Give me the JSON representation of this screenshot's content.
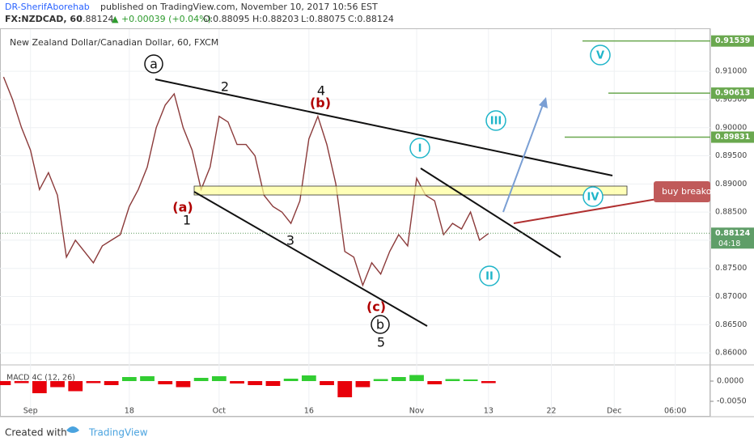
{
  "header": {
    "author": "DR-SherifAborehab",
    "published": "published on TradingView.com, November 10, 2017 10:56 EST",
    "symbol": "FX:NZDCAD, 60",
    "last": "0.88124",
    "change": "▲ +0.00039 (+0.04%)",
    "open": "O:0.88095",
    "high": "H:0.88203",
    "low": "L:0.88075",
    "close": "C:0.88124"
  },
  "footer": {
    "created": "Created with",
    "brand": "TradingView"
  },
  "chart_data": [
    {
      "type": "line",
      "title": "New Zealand Dollar/Canadian Dollar, 60, FXCM",
      "x": [
        -3,
        -2,
        -1,
        0,
        1,
        2,
        3,
        4,
        5,
        6,
        7,
        8,
        9,
        10,
        11,
        12,
        13,
        14,
        15,
        16,
        17,
        18,
        19,
        20,
        21,
        22,
        23,
        24,
        25,
        26,
        27,
        28,
        29,
        30,
        31,
        32,
        33,
        34,
        35,
        36,
        37,
        38,
        39,
        40,
        41,
        42,
        43,
        44,
        45,
        46,
        47,
        48,
        49,
        50,
        51
      ],
      "values": [
        0.909,
        0.905,
        0.9,
        0.896,
        0.889,
        0.892,
        0.888,
        0.877,
        0.88,
        0.878,
        0.876,
        0.879,
        0.88,
        0.881,
        0.886,
        0.889,
        0.893,
        0.9,
        0.904,
        0.906,
        0.9,
        0.896,
        0.889,
        0.893,
        0.902,
        0.901,
        0.897,
        0.897,
        0.895,
        0.888,
        0.886,
        0.885,
        0.883,
        0.887,
        0.898,
        0.902,
        0.897,
        0.89,
        0.878,
        0.877,
        0.872,
        0.876,
        0.874,
        0.878,
        0.881,
        0.879,
        0.891,
        0.888,
        0.887,
        0.881,
        0.883,
        0.882,
        0.885,
        0.88,
        0.8812
      ],
      "color": "#8b3a3a",
      "xlim": [
        -3.4,
        75.7
      ],
      "xticks": [
        {
          "value": 0,
          "label": "Sep"
        },
        {
          "value": 11,
          "label": "18"
        },
        {
          "value": 21,
          "label": "Oct"
        },
        {
          "value": 31,
          "label": "16"
        },
        {
          "value": 43,
          "label": "Nov"
        },
        {
          "value": 51,
          "label": "13"
        },
        {
          "value": 58,
          "label": "22"
        },
        {
          "value": 65,
          "label": "Dec"
        },
        {
          "value": 71.8,
          "label": "06:00"
        }
      ],
      "ylim": [
        0.858,
        0.9175
      ],
      "yticks": [
        {
          "value": 0.86,
          "label": "0.86000"
        },
        {
          "value": 0.865,
          "label": "0.86500"
        },
        {
          "value": 0.87,
          "label": "0.87000"
        },
        {
          "value": 0.875,
          "label": "0.87500"
        },
        {
          "value": 0.88,
          "label": "0.88000"
        },
        {
          "value": 0.885,
          "label": "0.88500"
        },
        {
          "value": 0.89,
          "label": "0.89000"
        },
        {
          "value": 0.895,
          "label": "0.89500"
        },
        {
          "value": 0.9,
          "label": "0.90000"
        },
        {
          "value": 0.905,
          "label": "0.90500"
        },
        {
          "value": 0.91,
          "label": "0.91000"
        }
      ],
      "levels": [
        0.91539,
        0.90613,
        0.89831
      ],
      "level_color": "#6aa84f",
      "current": 0.88124,
      "countdown": "04:18",
      "annotations": [
        "a",
        "b",
        "(a)",
        "1",
        "2",
        "3",
        "4",
        "5",
        "(b)",
        "(c)",
        "I",
        "II",
        "III",
        "IV",
        "V"
      ],
      "callout": "buy breako"
    },
    {
      "type": "histogram",
      "title": "MACD 4C (12, 26)",
      "x": [
        -3,
        -1,
        1,
        3,
        5,
        7,
        9,
        11,
        13,
        15,
        17,
        19,
        21,
        23,
        25,
        27,
        29,
        31,
        33,
        35,
        37,
        39,
        41,
        43,
        45,
        47,
        49,
        51
      ],
      "values": [
        -0.001,
        -0.0005,
        -0.003,
        -0.0015,
        -0.0025,
        -0.0005,
        -0.001,
        0.001,
        0.0012,
        -0.0008,
        -0.0015,
        0.0008,
        0.0012,
        -0.0006,
        -0.001,
        -0.0012,
        0.0006,
        0.0014,
        -0.001,
        -0.004,
        -0.0015,
        0.0005,
        0.001,
        0.0015,
        -0.0008,
        0.0005,
        0.0004,
        -0.0005
      ],
      "up_color": "#32cd32",
      "down_color": "#e8000b",
      "ylim": [
        -0.0058,
        0.0032
      ],
      "yticks": [
        {
          "value": 0,
          "label": "0.0000"
        },
        {
          "value": -0.005,
          "label": "-0.0050"
        }
      ]
    }
  ]
}
